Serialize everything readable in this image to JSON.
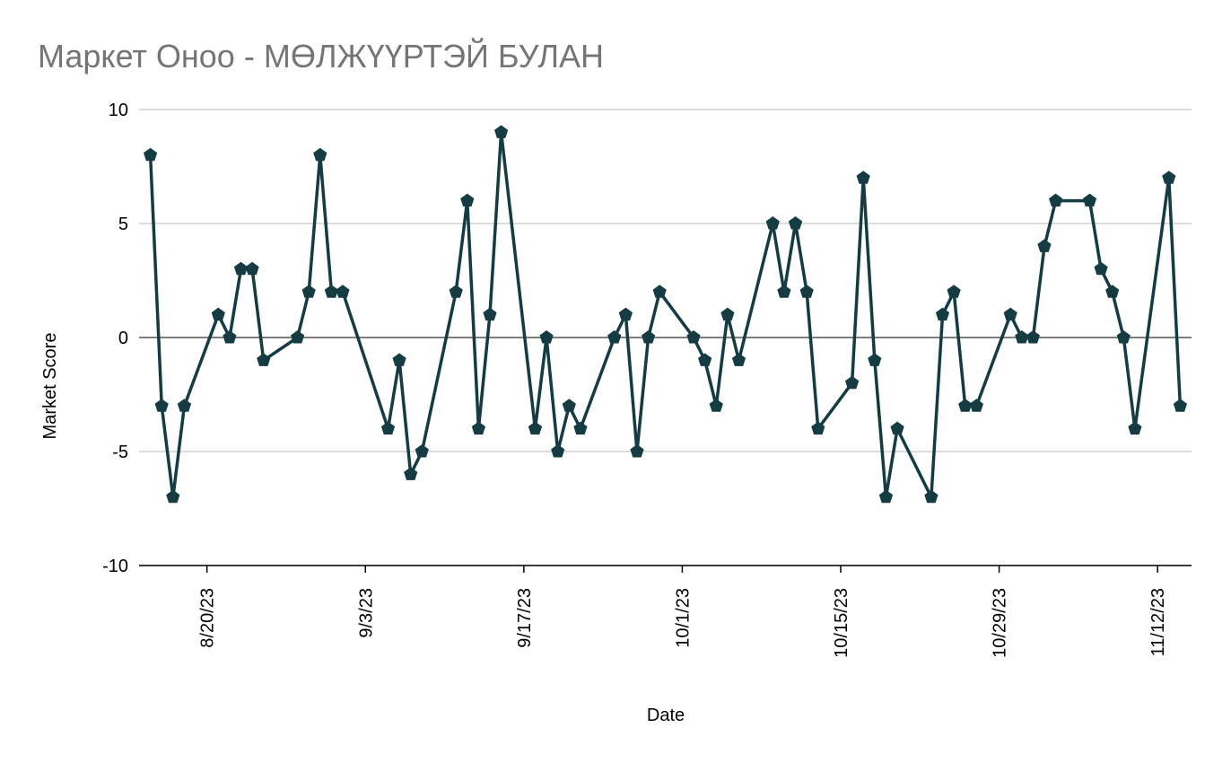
{
  "chart_data": {
    "type": "line",
    "title": "Маркет Оноо - МӨЛЖҮҮРТЭЙ БУЛАН",
    "x_label": "Date",
    "y_label": "Market Score",
    "x": [
      "8/15/23",
      "8/16/23",
      "8/17/23",
      "8/18/23",
      "8/21/23",
      "8/22/23",
      "8/23/23",
      "8/24/23",
      "8/25/23",
      "8/28/23",
      "8/29/23",
      "8/30/23",
      "8/31/23",
      "9/1/23",
      "9/5/23",
      "9/6/23",
      "9/7/23",
      "9/8/23",
      "9/11/23",
      "9/12/23",
      "9/13/23",
      "9/14/23",
      "9/15/23",
      "9/18/23",
      "9/19/23",
      "9/20/23",
      "9/21/23",
      "9/22/23",
      "9/25/23",
      "9/26/23",
      "9/27/23",
      "9/28/23",
      "9/29/23",
      "10/2/23",
      "10/3/23",
      "10/4/23",
      "10/5/23",
      "10/6/23",
      "10/9/23",
      "10/10/23",
      "10/11/23",
      "10/12/23",
      "10/13/23",
      "10/16/23",
      "10/17/23",
      "10/18/23",
      "10/19/23",
      "10/20/23",
      "10/23/23",
      "10/24/23",
      "10/25/23",
      "10/26/23",
      "10/27/23",
      "10/30/23",
      "10/31/23",
      "11/1/23",
      "11/2/23",
      "11/3/23",
      "11/6/23",
      "11/7/23",
      "11/8/23",
      "11/9/23",
      "11/10/23",
      "11/13/23",
      "11/14/23"
    ],
    "series": [
      {
        "color": "#143c42",
        "values": [
          8,
          -3,
          -7,
          -3,
          1,
          0,
          3,
          3,
          -1,
          0,
          2,
          8,
          2,
          2,
          -4,
          -1,
          -6,
          -5,
          2,
          6,
          -4,
          1,
          9,
          -4,
          0,
          -5,
          -3,
          -4,
          0,
          1,
          -5,
          0,
          2,
          0,
          -1,
          -3,
          1,
          -1,
          5,
          2,
          5,
          2,
          -4,
          -2,
          7,
          -1,
          -7,
          -4,
          -7,
          1,
          2,
          -3,
          -3,
          1,
          0,
          0,
          4,
          6,
          6,
          3,
          2,
          0,
          -4,
          7,
          -3
        ]
      }
    ],
    "xlim": [
      "8/14/23",
      "11/15/23"
    ],
    "xticks": [
      "8/20/23",
      "9/3/23",
      "9/17/23",
      "10/1/23",
      "10/15/23",
      "10/29/23",
      "11/12/23"
    ],
    "ylim": [
      -10,
      10
    ],
    "yticks": [
      10,
      5,
      0,
      -5,
      -10
    ],
    "grid": true
  }
}
